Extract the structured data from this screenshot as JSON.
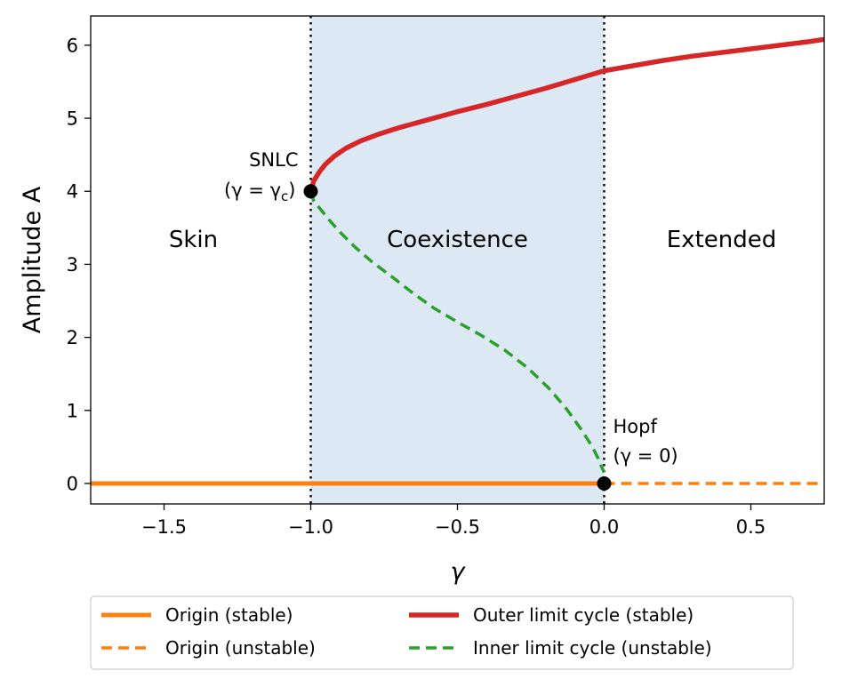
{
  "chart_data": {
    "type": "line",
    "title": "",
    "xlabel": "γ",
    "ylabel": "Amplitude A",
    "xlim": [
      -1.75,
      0.75
    ],
    "ylim": [
      -0.28,
      6.4
    ],
    "xticks": [
      -1.5,
      -1.0,
      -0.5,
      0.0,
      0.5
    ],
    "xtick_labels": [
      "−1.5",
      "−1.0",
      "−0.5",
      "0.0",
      "0.5"
    ],
    "yticks": [
      0,
      1,
      2,
      3,
      4,
      5,
      6
    ],
    "ytick_labels": [
      "0",
      "1",
      "2",
      "3",
      "4",
      "5",
      "6"
    ],
    "grid": false,
    "shaded_region": {
      "x_start": -1.0,
      "x_end": 0.0,
      "color": "#dce8f3"
    },
    "vlines": [
      {
        "x": -1.0,
        "style": "dotted"
      },
      {
        "x": 0.0,
        "style": "dotted"
      }
    ],
    "region_labels": [
      {
        "text": "Skin",
        "x": -1.4,
        "y": 3.2
      },
      {
        "text": "Coexistence",
        "x": -0.5,
        "y": 3.2
      },
      {
        "text": "Extended",
        "x": 0.4,
        "y": 3.2
      }
    ],
    "points": [
      {
        "name": "SNLC",
        "x": -1.0,
        "y": 4.0
      },
      {
        "name": "Hopf",
        "x": 0.0,
        "y": 0.0
      }
    ],
    "annotations": {
      "snlc": {
        "line1": "SNLC",
        "line2_open": "(γ = γ",
        "line2_sub": "c",
        "line2_close": ")"
      },
      "hopf": {
        "line1": "Hopf",
        "line2": "(γ = 0)"
      }
    },
    "series": [
      {
        "name": "Origin (stable)",
        "color": "#ff7f0e",
        "style": "solid",
        "width": 5,
        "x": [
          -1.75,
          0.0
        ],
        "y": [
          0,
          0
        ]
      },
      {
        "name": "Origin (unstable)",
        "color": "#ff7f0e",
        "style": "dashed",
        "width": 3.5,
        "x": [
          0.0,
          0.75
        ],
        "y": [
          0,
          0
        ]
      },
      {
        "name": "Outer limit cycle (stable)",
        "color": "#d62728",
        "style": "solid",
        "width": 5.5,
        "x": [
          -1.0,
          -0.99,
          -0.97,
          -0.95,
          -0.92,
          -0.88,
          -0.83,
          -0.77,
          -0.7,
          -0.6,
          -0.5,
          -0.4,
          -0.3,
          -0.2,
          -0.1,
          0.0,
          0.1,
          0.2,
          0.3,
          0.4,
          0.5,
          0.6,
          0.7,
          0.75
        ],
        "y": [
          4.0,
          4.14,
          4.27,
          4.37,
          4.48,
          4.59,
          4.69,
          4.78,
          4.87,
          4.98,
          5.09,
          5.19,
          5.3,
          5.41,
          5.53,
          5.65,
          5.72,
          5.79,
          5.85,
          5.9,
          5.95,
          6.0,
          6.05,
          6.08
        ]
      },
      {
        "name": "Inner limit cycle (unstable)",
        "color": "#2ca02c",
        "style": "dashed",
        "width": 3.5,
        "x": [
          -1.0,
          -0.99,
          -0.97,
          -0.94,
          -0.9,
          -0.85,
          -0.79,
          -0.72,
          -0.65,
          -0.58,
          -0.5,
          -0.42,
          -0.34,
          -0.26,
          -0.19,
          -0.13,
          -0.08,
          -0.04,
          -0.02,
          -0.01,
          0.0
        ],
        "y": [
          4.0,
          3.87,
          3.77,
          3.62,
          3.44,
          3.24,
          3.03,
          2.82,
          2.6,
          2.4,
          2.21,
          2.03,
          1.83,
          1.58,
          1.31,
          1.03,
          0.75,
          0.5,
          0.34,
          0.24,
          0.15
        ]
      }
    ],
    "legend": {
      "placement": "below",
      "columns": 2,
      "entries": [
        "Origin (stable)",
        "Origin (unstable)",
        "Outer limit cycle (stable)",
        "Inner limit cycle (unstable)"
      ]
    }
  }
}
